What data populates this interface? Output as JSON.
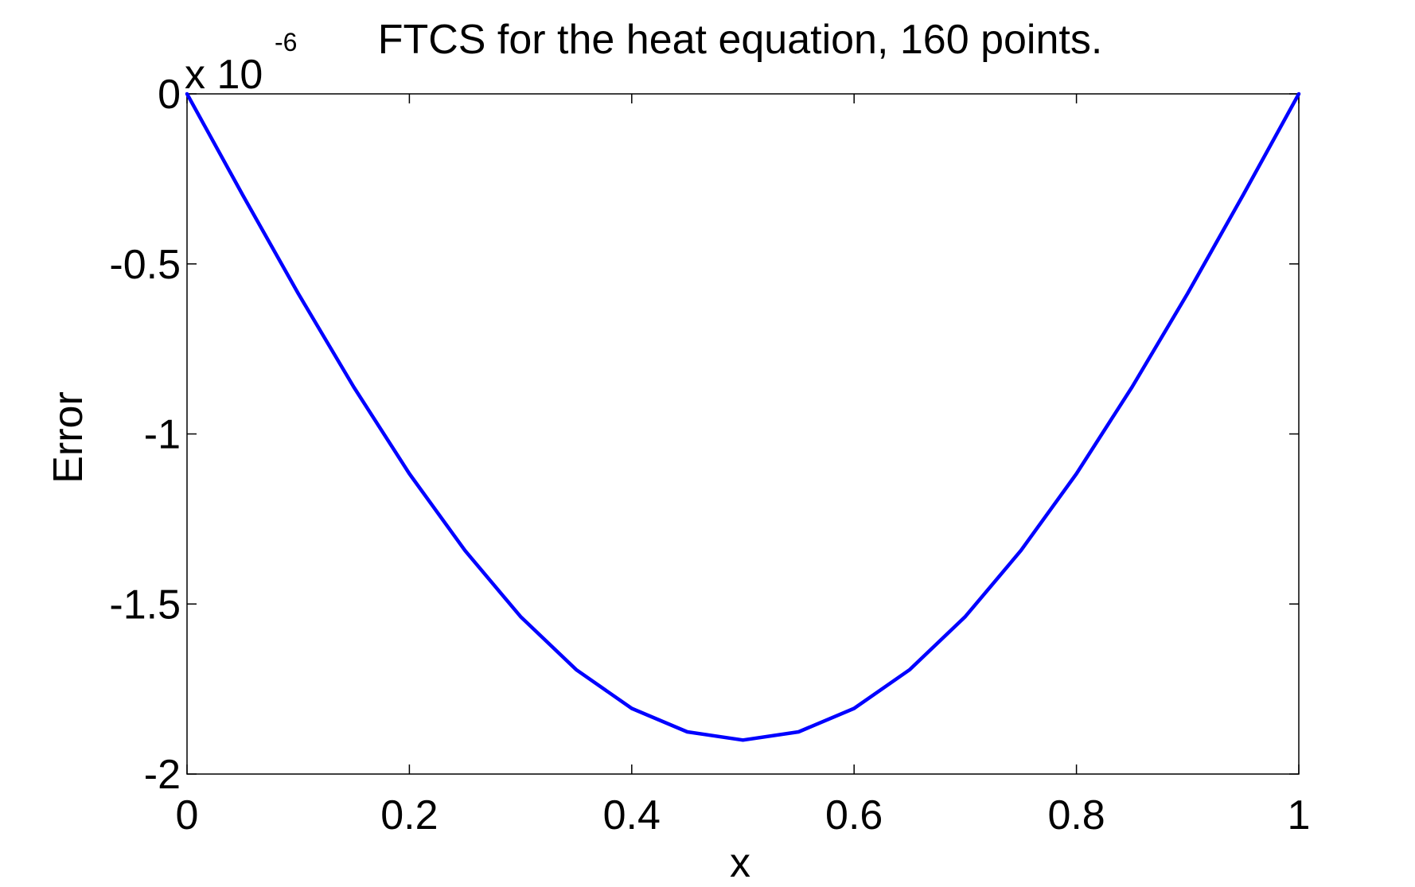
{
  "chart_data": {
    "type": "line",
    "title": "FTCS for the heat equation, 160 points.",
    "xlabel": "x",
    "ylabel": "Error",
    "y_exponent_label": {
      "base": "x 10",
      "exponent": "-6"
    },
    "xlim": [
      0,
      1
    ],
    "ylim": [
      -2,
      0
    ],
    "xticks": [
      0,
      0.2,
      0.4,
      0.6,
      0.8,
      1
    ],
    "xtick_labels": [
      "0",
      "0.2",
      "0.4",
      "0.6",
      "0.8",
      "1"
    ],
    "yticks": [
      0,
      -0.5,
      -1,
      -1.5,
      -2
    ],
    "ytick_labels": [
      "0",
      "-0.5",
      "-1",
      "-1.5",
      "-2"
    ],
    "grid": false,
    "series": [
      {
        "color": "#0000ff",
        "x": [
          0,
          0.05,
          0.1,
          0.15,
          0.2,
          0.25,
          0.3,
          0.35,
          0.4,
          0.45,
          0.5,
          0.55,
          0.6,
          0.65,
          0.7,
          0.75,
          0.8,
          0.85,
          0.9,
          0.95,
          1
        ],
        "y": [
          0,
          -0.297,
          -0.587,
          -0.862,
          -1.117,
          -1.343,
          -1.537,
          -1.693,
          -1.807,
          -1.876,
          -1.9,
          -1.876,
          -1.807,
          -1.693,
          -1.537,
          -1.343,
          -1.117,
          -0.862,
          -0.587,
          -0.297,
          0
        ]
      }
    ]
  }
}
